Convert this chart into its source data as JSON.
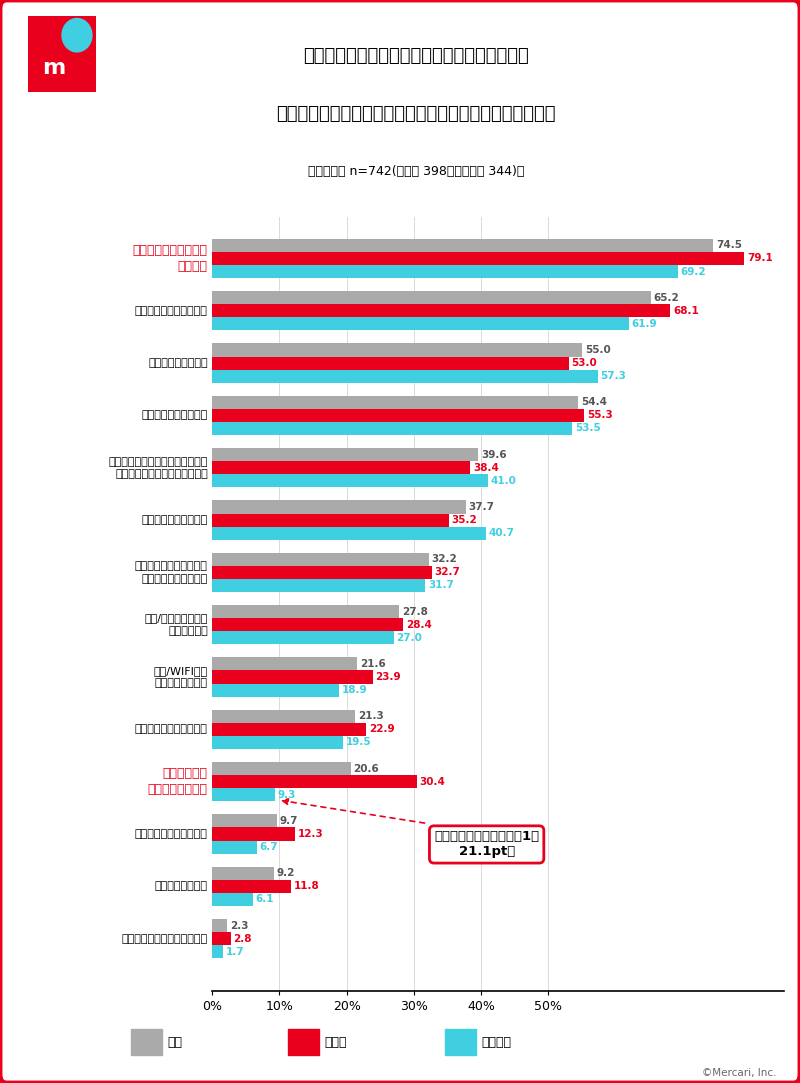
{
  "title_line1": "節約意識の高まりに伴い、具体的に行っている",
  "title_line2": "節約に関する行動として当てはまるものをお答えください",
  "subtitle": "（複数回答 n=742(利用者 398，非利用者 344)）",
  "categories": [
    "クーポン・ポイントを\n利用する",
    "特売・セールを利用する",
    "電気をこまめに消す",
    "エコバッグを利用する",
    "日常的に購入するモノに関して、\nより安い商品を検討し購入する",
    "水道をこまめに止める",
    "外食・フードデリバリー\nサービス利用を控える",
    "趣味/娯楽に関連する\n出費を控える",
    "携帯/WIFIなど\n通信料金の見直し",
    "空調設備の利用を控える",
    "新品ではなく\n中古品を購入する",
    "省エネ家電への買い替え",
    "保険料金の見直し",
    "より安い家賎の家に引っ越す"
  ],
  "values_all": [
    74.5,
    65.2,
    55.0,
    54.4,
    39.6,
    37.7,
    32.2,
    27.8,
    21.6,
    21.3,
    20.6,
    9.7,
    9.2,
    2.3
  ],
  "values_user": [
    79.1,
    68.1,
    53.0,
    55.3,
    38.4,
    35.2,
    32.7,
    28.4,
    23.9,
    22.9,
    30.4,
    12.3,
    11.8,
    2.8
  ],
  "values_nonuser": [
    69.2,
    61.9,
    57.3,
    53.5,
    41.0,
    40.7,
    31.7,
    27.0,
    18.9,
    19.5,
    9.3,
    6.7,
    6.1,
    1.7
  ],
  "color_all": "#aaaaaa",
  "color_user": "#e8001c",
  "color_nonuser": "#40cfe0",
  "highlight_indices": [
    0,
    10
  ],
  "highlight_label_color": "#e8001c",
  "xlim_max": 85,
  "xticks": [
    0,
    10,
    20,
    30,
    40,
    50
  ],
  "xtick_labels": [
    "0%",
    "10%",
    "20%",
    "30%",
    "40%",
    "50%"
  ],
  "border_color": "#e8001c",
  "annotation_text": "利用者・非利用者間の差1位\n21.1pt差",
  "copyright": "©Mercari, Inc.",
  "legend_all": "全体",
  "legend_user": "利用者",
  "legend_nonuser": "非利用者"
}
